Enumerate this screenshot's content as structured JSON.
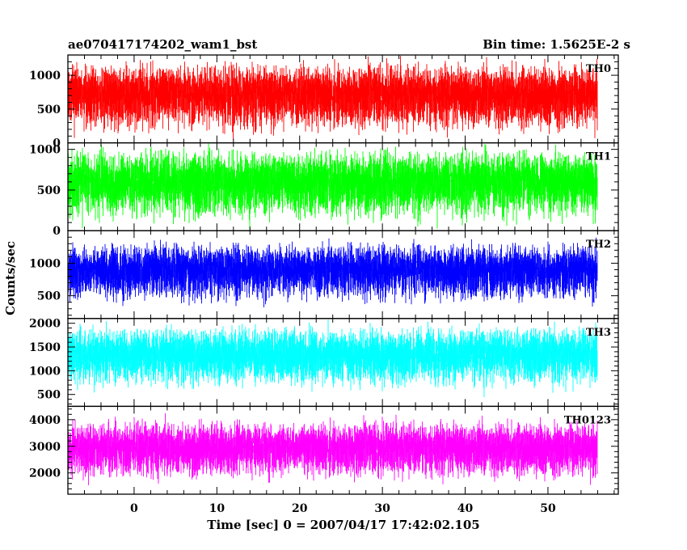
{
  "chart_data": {
    "type": "line",
    "title_left": "ae070417174202_wam1_bst",
    "title_right": "Bin time: 1.5625E-2 s",
    "xlabel": "Time [sec] 0 = 2007/04/17 17:42:02.105",
    "ylabel": "Counts/sec",
    "xlim": [
      -8.0,
      58.5
    ],
    "x_data_range": [
      -8.0,
      56.0
    ],
    "bin_time": 0.015625,
    "x_ticks": [
      0,
      10,
      20,
      30,
      40,
      50
    ],
    "x_tick_labels": [
      "0",
      "10",
      "20",
      "30",
      "40",
      "50"
    ],
    "panels": [
      {
        "name": "TH0",
        "color": "#ff0000",
        "ylim": [
          0,
          1300
        ],
        "yticks": [
          0,
          500,
          1000
        ],
        "ytick_labels": [
          "0",
          "500",
          "1000"
        ],
        "baseline": 600,
        "spread": 300,
        "max": 1300,
        "min": 0
      },
      {
        "name": "TH1",
        "color": "#00ff00",
        "ylim": [
          0,
          1080
        ],
        "yticks": [
          0,
          500,
          1000
        ],
        "ytick_labels": [
          "0",
          "500",
          "1000"
        ],
        "baseline": 500,
        "spread": 260,
        "max": 1080,
        "min": 0
      },
      {
        "name": "TH2",
        "color": "#0000ff",
        "ylim": [
          150,
          1500
        ],
        "yticks": [
          500,
          1000
        ],
        "ytick_labels": [
          "500",
          "1000"
        ],
        "baseline": 800,
        "spread": 260,
        "max": 1500,
        "min": 150
      },
      {
        "name": "TH3",
        "color": "#00ffff",
        "ylim": [
          250,
          2100
        ],
        "yticks": [
          500,
          1000,
          1500,
          2000
        ],
        "ytick_labels": [
          "500",
          "1000",
          "1500",
          "2000"
        ],
        "baseline": 1200,
        "spread": 380,
        "max": 2100,
        "min": 250
      },
      {
        "name": "TH0123",
        "color": "#ff00ff",
        "ylim": [
          1200,
          4500
        ],
        "yticks": [
          2000,
          3000,
          4000
        ],
        "ytick_labels": [
          "2000",
          "3000",
          "4000"
        ],
        "baseline": 2700,
        "spread": 650,
        "max": 4500,
        "min": 1200
      }
    ]
  }
}
